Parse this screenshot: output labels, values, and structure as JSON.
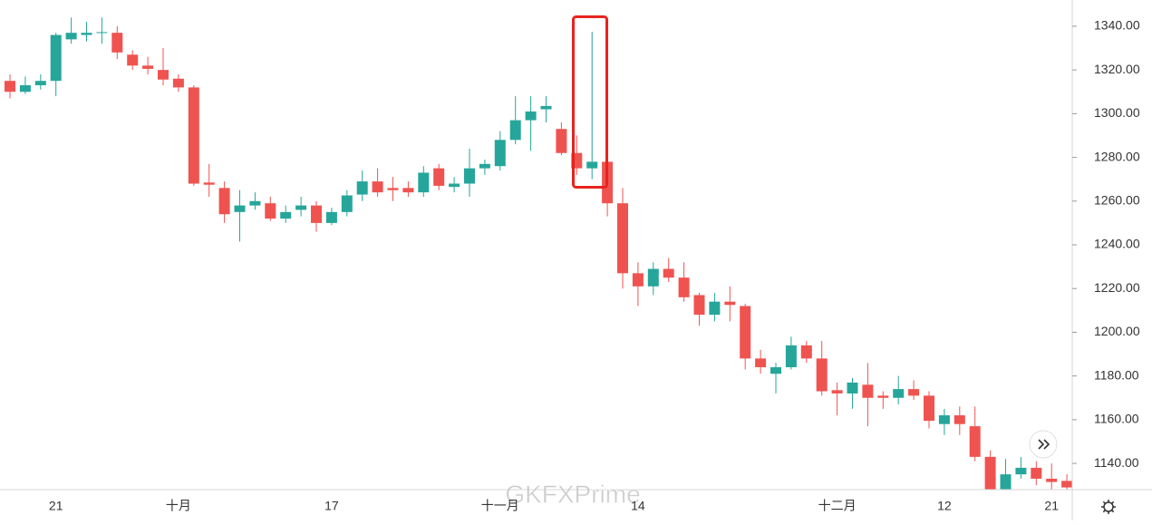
{
  "chart_data": {
    "type": "candlestick",
    "categories": [
      null,
      null,
      null,
      "21",
      null,
      null,
      null,
      null,
      null,
      null,
      null,
      "十月",
      null,
      null,
      null,
      null,
      null,
      null,
      null,
      null,
      null,
      "17",
      null,
      null,
      null,
      null,
      null,
      null,
      null,
      null,
      null,
      null,
      "十一月",
      null,
      null,
      null,
      null,
      null,
      null,
      null,
      null,
      "14",
      null,
      null,
      null,
      null,
      null,
      null,
      null,
      null,
      null,
      null,
      null,
      null,
      "十二月",
      null,
      null,
      null,
      null,
      null,
      null,
      "12",
      null,
      null,
      null,
      null,
      null,
      null,
      "21",
      null
    ],
    "open": [
      1315,
      1310,
      1313,
      1315,
      1334,
      1336,
      1337,
      1337,
      1327,
      1322,
      1320,
      1316,
      1312,
      1268.5,
      1266,
      1255,
      1258,
      1259,
      1252,
      1256,
      1258,
      1250,
      1255,
      1263,
      1269,
      1266,
      1266,
      1264,
      1275,
      1266.5,
      1268,
      1275,
      1276,
      1288,
      1297,
      1302,
      1293,
      1282,
      1275,
      1278,
      1259,
      1227,
      1221,
      1229,
      1225,
      1217,
      1208,
      1214,
      1212,
      1188,
      1181,
      1184,
      1194,
      1188,
      1173.5,
      1172,
      1176,
      1171,
      1170,
      1174,
      1171,
      1158,
      1162,
      1157,
      1143,
      1128,
      1135,
      1138,
      1133,
      1132
    ],
    "high": [
      1318,
      1317,
      1318,
      1337,
      1344,
      1342,
      1344,
      1340,
      1329,
      1326,
      1330,
      1318,
      1313,
      1277,
      1269,
      1265,
      1264,
      1262,
      1258,
      1262,
      1260,
      1257,
      1265,
      1274,
      1275,
      1271,
      1269,
      1276,
      1277,
      1271,
      1284,
      1279,
      1292,
      1308,
      1308,
      1308,
      1296,
      1290,
      1337.5,
      1289,
      1266,
      1232,
      1232,
      1234,
      1232,
      1218,
      1218,
      1221,
      1213,
      1192,
      1186,
      1198,
      1196,
      1196,
      1177,
      1179,
      1186,
      1173,
      1180,
      1178,
      1173,
      1165,
      1166,
      1166,
      1146,
      1142,
      1143,
      1141,
      1140,
      1135
    ],
    "low": [
      1307,
      1309,
      1311,
      1308,
      1332,
      1333,
      1332,
      1325,
      1320,
      1318,
      1313,
      1310,
      1267,
      1262,
      1250,
      1241.5,
      1256,
      1251,
      1250,
      1253,
      1246,
      1249,
      1253,
      1260,
      1262,
      1260,
      1262,
      1262,
      1265,
      1264,
      1262,
      1272,
      1274,
      1286,
      1283,
      1296,
      1281,
      1272,
      1270,
      1253,
      1220,
      1212,
      1217,
      1223,
      1214,
      1203,
      1205,
      1205,
      1183,
      1181,
      1172,
      1183,
      1186,
      1171,
      1162,
      1165,
      1157,
      1165,
      1167,
      1169,
      1156,
      1153,
      1153,
      1141,
      1126,
      1128,
      1133,
      1130,
      1128,
      1128
    ],
    "close": [
      1310,
      1313,
      1315,
      1336,
      1337,
      1337,
      1337.3,
      1328,
      1322,
      1320.5,
      1315.6,
      1312,
      1268,
      1267.5,
      1254,
      1258,
      1260,
      1252,
      1255,
      1258,
      1250,
      1255,
      1262.6,
      1269,
      1264,
      1265,
      1264,
      1273,
      1267,
      1268,
      1275,
      1277,
      1288,
      1297,
      1301,
      1303.5,
      1282,
      1275,
      1278,
      1259,
      1227,
      1221,
      1229,
      1225,
      1216,
      1208,
      1214,
      1212.5,
      1188,
      1184,
      1184,
      1194,
      1188,
      1173,
      1172,
      1177,
      1170,
      1170,
      1174,
      1171,
      1159.5,
      1162,
      1158,
      1143,
      1128,
      1135,
      1138,
      1133,
      1131.5,
      1129
    ],
    "up_color": "#26a69a",
    "down_color": "#ef5350",
    "ylim": [
      1128,
      1352
    ],
    "yticks": [
      {
        "value": 1140,
        "label": "1140.00"
      },
      {
        "value": 1160,
        "label": "1160.00"
      },
      {
        "value": 1180,
        "label": "1180.00"
      },
      {
        "value": 1200,
        "label": "1200.00"
      },
      {
        "value": 1220,
        "label": "1220.00"
      },
      {
        "value": 1240,
        "label": "1240.00"
      },
      {
        "value": 1260,
        "label": "1260.00"
      },
      {
        "value": 1280,
        "label": "1280.00"
      },
      {
        "value": 1300,
        "label": "1300.00"
      },
      {
        "value": 1320,
        "label": "1320.00"
      },
      {
        "value": 1340,
        "label": "1340.00"
      }
    ],
    "watermark": "GKFXPrime"
  }
}
